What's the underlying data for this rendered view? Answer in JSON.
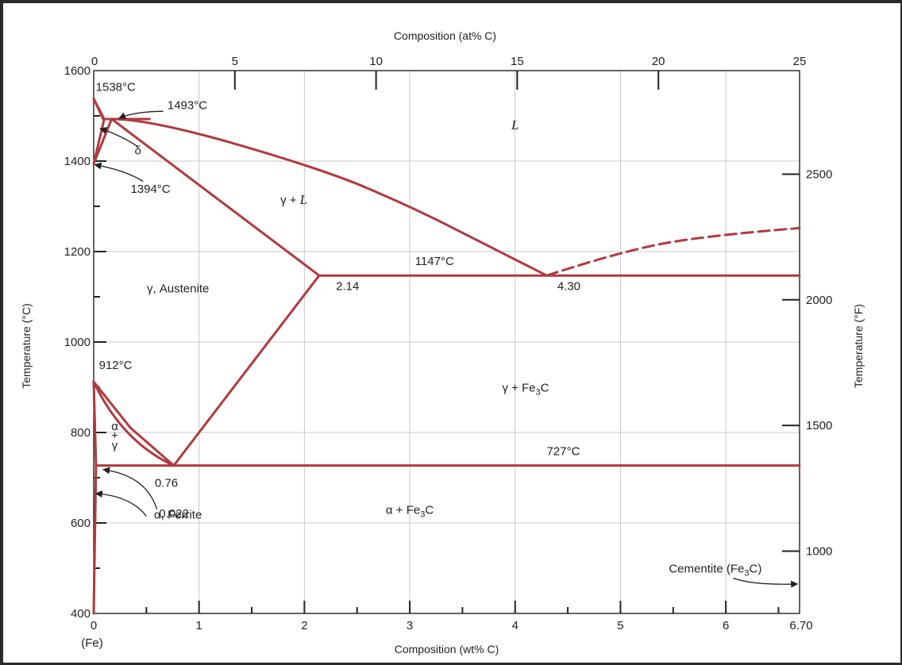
{
  "chart_data": {
    "type": "line",
    "title": "",
    "xlabel": "Composition (wt% C)",
    "ylabel": "Temperature (°C)",
    "x2label": "Composition (at% C)",
    "y2label": "Temperature (°F)",
    "xlim": [
      0,
      6.7
    ],
    "ylim": [
      400,
      1600
    ],
    "x2lim": [
      0,
      25
    ],
    "grid": true,
    "x_ticks": [
      {
        "v": 0,
        "label": "0"
      },
      {
        "v": 1,
        "label": "1"
      },
      {
        "v": 2,
        "label": "2"
      },
      {
        "v": 3,
        "label": "3"
      },
      {
        "v": 4,
        "label": "4"
      },
      {
        "v": 5,
        "label": "5"
      },
      {
        "v": 6,
        "label": "6"
      },
      {
        "v": 6.7,
        "label": "6.70"
      }
    ],
    "x_origin_note": "(Fe)",
    "y_ticks": [
      {
        "v": 400,
        "label": "400"
      },
      {
        "v": 600,
        "label": "600"
      },
      {
        "v": 800,
        "label": "800"
      },
      {
        "v": 1000,
        "label": "1000"
      },
      {
        "v": 1200,
        "label": "1200"
      },
      {
        "v": 1400,
        "label": "1400"
      },
      {
        "v": 1600,
        "label": "1600"
      }
    ],
    "x2_ticks": [
      {
        "v": 0,
        "label": "0"
      },
      {
        "v": 5,
        "label": "5"
      },
      {
        "v": 10,
        "label": "10"
      },
      {
        "v": 15,
        "label": "15"
      },
      {
        "v": 20,
        "label": "20"
      },
      {
        "v": 25,
        "label": "25"
      }
    ],
    "y2_ticks": [
      {
        "v": 1000,
        "label": "1000"
      },
      {
        "v": 1500,
        "label": "1500"
      },
      {
        "v": 2000,
        "label": "2000"
      },
      {
        "v": 2500,
        "label": "2500"
      }
    ],
    "line_color": "#b03a3e",
    "series": [
      {
        "x": [
          0,
          0.09
        ],
        "y": [
          1538,
          1493
        ]
      },
      {
        "x": [
          0,
          0.1,
          0.17,
          0.53
        ],
        "y": [
          1538,
          1493,
          1493,
          1493
        ]
      },
      {
        "x": [
          0.17,
          0.53,
          2.2,
          3.0,
          3.6,
          4.3
        ],
        "y": [
          1493,
          1493,
          1380,
          1300,
          1230,
          1147
        ]
      },
      {
        "x": [
          0,
          0.1
        ],
        "y": [
          1394,
          1493
        ]
      },
      {
        "x": [
          0,
          0.17
        ],
        "y": [
          1394,
          1493
        ]
      },
      {
        "x": [
          0.17,
          2.14
        ],
        "y": [
          1493,
          1147
        ]
      },
      {
        "x": [
          2.14,
          6.7
        ],
        "y": [
          1147,
          1147
        ]
      },
      {
        "x": [
          0.76,
          2.14
        ],
        "y": [
          727,
          1147
        ]
      },
      {
        "x": [
          0,
          0.35,
          0.76
        ],
        "y": [
          912,
          810,
          727
        ]
      },
      {
        "x": [
          0,
          0.022
        ],
        "y": [
          912,
          727
        ]
      },
      {
        "x": [
          0.022,
          6.7
        ],
        "y": [
          727,
          727
        ]
      },
      {
        "x": [
          0,
          0.022
        ],
        "y": [
          400,
          727
        ]
      },
      {
        "x": [
          4.3,
          5.0,
          5.8,
          6.7
        ],
        "y": [
          1147,
          1200,
          1235,
          1252
        ],
        "style": "dashed"
      }
    ],
    "phase_labels": [
      {
        "text": "L",
        "x": 4.0,
        "y": 1470
      },
      {
        "text": "γ + L",
        "x": 1.9,
        "y": 1305
      },
      {
        "text": "δ",
        "x": 0.42,
        "y": 1415
      },
      {
        "text": "γ, Austenite",
        "x": 0.8,
        "y": 1110
      },
      {
        "text": "γ + Fe3C",
        "x": 4.1,
        "y": 890
      },
      {
        "text": "α + Fe3C",
        "x": 3.0,
        "y": 620
      },
      {
        "text": "α",
        "x": 0.2,
        "y": 805
      },
      {
        "text": "+",
        "x": 0.2,
        "y": 785
      },
      {
        "text": "γ",
        "x": 0.2,
        "y": 763
      },
      {
        "text": "α, Ferrite",
        "x": 0.8,
        "y": 610
      },
      {
        "text": "Cementite (Fe3C)",
        "x": 5.9,
        "y": 490
      }
    ],
    "annotations": [
      {
        "text": "1538°C",
        "x": 0.02,
        "y": 1555
      },
      {
        "text": "1493°C",
        "x": 0.7,
        "y": 1515
      },
      {
        "text": "1394°C",
        "x": 0.35,
        "y": 1330
      },
      {
        "text": "1147°C",
        "x": 3.05,
        "y": 1170
      },
      {
        "text": "2.14",
        "x": 2.3,
        "y": 1115
      },
      {
        "text": "4.30",
        "x": 4.4,
        "y": 1115
      },
      {
        "text": "912°C",
        "x": 0.05,
        "y": 940
      },
      {
        "text": "727°C",
        "x": 4.3,
        "y": 750
      },
      {
        "text": "0.76",
        "x": 0.58,
        "y": 680
      },
      {
        "text": "0.022",
        "x": 0.62,
        "y": 612
      }
    ]
  }
}
